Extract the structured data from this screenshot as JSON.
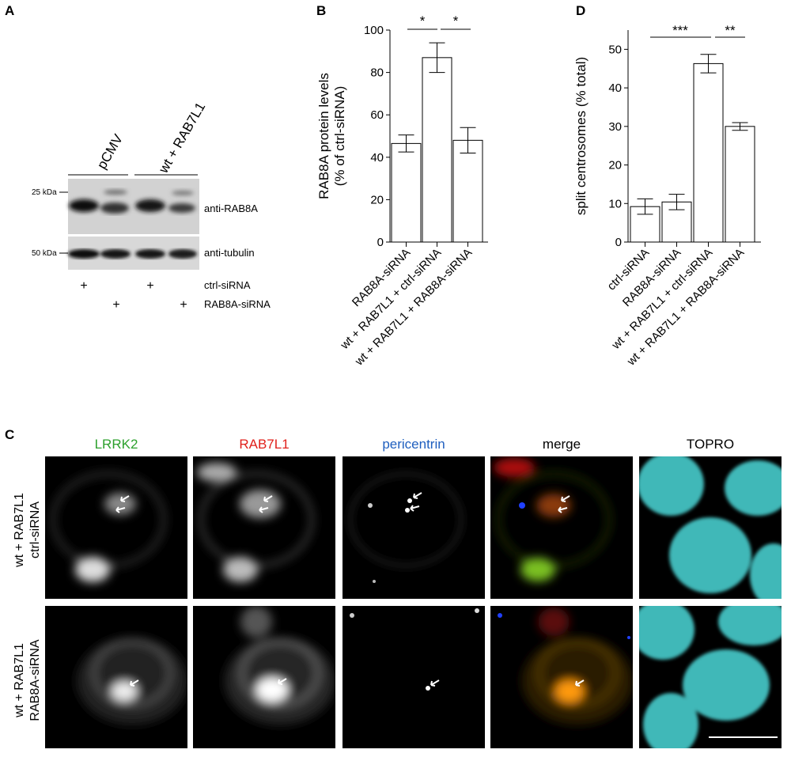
{
  "panelA": {
    "letter": "A",
    "groups": [
      "pCMV",
      "wt + RAB7L1"
    ],
    "marker_top": "25 kDa",
    "marker_bottom": "50 kDa",
    "blot_top": "anti-RAB8A",
    "blot_bottom": "anti-tubulin",
    "conditions": [
      {
        "label": "ctrl-siRNA",
        "marks": [
          "+",
          "",
          "+",
          ""
        ]
      },
      {
        "label": "RAB8A-siRNA",
        "marks": [
          "",
          "+",
          "",
          "+"
        ]
      }
    ]
  },
  "panelB": {
    "letter": "B",
    "sig_left": "*",
    "sig_right": "*"
  },
  "panelD": {
    "letter": "D",
    "sig_left": "***",
    "sig_right": "**"
  },
  "panelC": {
    "letter": "C",
    "channels": [
      {
        "label": "LRRK2",
        "color": "#2ca02c"
      },
      {
        "label": "RAB7L1",
        "color": "#e0201b"
      },
      {
        "label": "pericentrin",
        "color": "#1f5fbf"
      },
      {
        "label": "merge",
        "color": "#000000"
      },
      {
        "label": "TOPRO",
        "color": "#000000"
      }
    ],
    "rows": [
      {
        "line1": "wt + RAB7L1",
        "line2": "ctrl-siRNA"
      },
      {
        "line1": "wt + RAB7L1",
        "line2": "RAB8A-siRNA"
      }
    ]
  },
  "chart_data": [
    {
      "type": "bar",
      "panel": "B",
      "categories": [
        "RAB8A-siRNA",
        "wt + RAB7L1 + ctrl-siRNA",
        "wt + RAB7L1 + RAB8A-siRNA"
      ],
      "values": [
        46.5,
        87,
        48
      ],
      "errors": [
        4,
        7,
        6
      ],
      "ylabel_line1": "RAB8A protein levels",
      "ylabel_line2": "(% of ctrl-siRNA)",
      "ylim": [
        0,
        100
      ],
      "yticks": [
        0,
        20,
        40,
        60,
        80,
        100
      ]
    },
    {
      "type": "bar",
      "panel": "D",
      "categories": [
        "ctrl-siRNA",
        "RAB8A-siRNA",
        "wt + RAB7L1 + ctrl-siRNA",
        "wt + RAB7L1 + RAB8A-siRNA"
      ],
      "values": [
        9.2,
        10.4,
        46.3,
        30
      ],
      "errors": [
        2,
        2,
        2.4,
        1
      ],
      "ylabel": "split centrosomes (% total)",
      "ylim": [
        0,
        55
      ],
      "yticks": [
        0,
        10,
        20,
        30,
        40,
        50
      ]
    }
  ]
}
